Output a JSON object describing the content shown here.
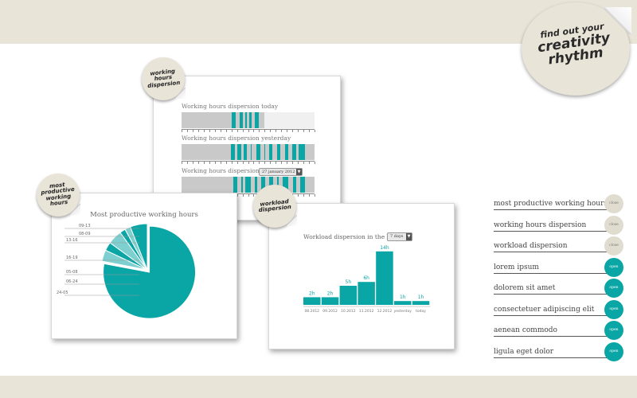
{
  "colors": {
    "teal": "#0aa5a5",
    "light_teal": "#7ed0d0",
    "beige": "#e9e4d8",
    "gray": "#c9c9c9"
  },
  "big_sticker": {
    "line1": "find out your",
    "line2": "creativity",
    "line3": "rhythm"
  },
  "hours_panel": {
    "sticker": "working hours dispersion",
    "rows": [
      {
        "label": "Working hours dispersion today",
        "segments": [
          [
            0.38,
            0.41
          ],
          [
            0.44,
            0.46
          ],
          [
            0.48,
            0.49
          ],
          [
            0.51,
            0.53
          ],
          [
            0.55,
            0.58
          ]
        ],
        "rest_from": 0.62
      },
      {
        "label": "Working hours dispersion yesterday",
        "segments": [
          [
            0.37,
            0.4
          ],
          [
            0.42,
            0.45
          ],
          [
            0.47,
            0.49
          ],
          [
            0.52,
            0.53
          ],
          [
            0.56,
            0.59
          ],
          [
            0.62,
            0.63
          ],
          [
            0.66,
            0.68
          ],
          [
            0.72,
            0.74
          ],
          [
            0.78,
            0.8
          ],
          [
            0.83,
            0.86
          ],
          [
            0.88,
            0.93
          ]
        ]
      },
      {
        "label": "Working hours dispersion on",
        "select": "27 january 2012",
        "segments": [
          [
            0.39,
            0.42
          ],
          [
            0.45,
            0.46
          ],
          [
            0.48,
            0.52
          ],
          [
            0.55,
            0.57
          ],
          [
            0.6,
            0.63
          ],
          [
            0.66,
            0.69
          ],
          [
            0.72,
            0.73
          ],
          [
            0.76,
            0.8
          ],
          [
            0.84,
            0.86
          ],
          [
            0.89,
            0.93
          ]
        ]
      }
    ]
  },
  "pie_panel": {
    "sticker": "most productive working hours",
    "chart_data": {
      "type": "pie",
      "title": "Most productive working hours",
      "labels": [
        "09-13",
        "08-09",
        "13-16",
        "16-19",
        "05-08",
        "06-24",
        "24-05"
      ],
      "values": [
        4,
        3,
        5,
        2,
        2,
        6,
        78
      ]
    }
  },
  "workload_panel": {
    "sticker": "workload dispersion",
    "title": "Workload dispersion in the last",
    "select": "7 days",
    "chart_data": {
      "type": "bar",
      "categories": [
        "08.2012",
        "09.2012",
        "10.2012",
        "11.2012",
        "12.2012",
        "yesterday",
        "today"
      ],
      "values": [
        2,
        2,
        5,
        6,
        14,
        1,
        1
      ],
      "value_labels": [
        "2h",
        "2h",
        "5h",
        "6h",
        "14h",
        "1h",
        "1h"
      ],
      "ylim": [
        0,
        15
      ]
    }
  },
  "legend": [
    {
      "label": "most productive working hours",
      "badge": "close",
      "style": "beige"
    },
    {
      "label": "working hours dispersion",
      "badge": "close",
      "style": "beige"
    },
    {
      "label": "workload dispersion",
      "badge": "close",
      "style": "beige"
    },
    {
      "label": "lorem ipsum",
      "badge": "open",
      "style": "teal"
    },
    {
      "label": "dolorem sit amet",
      "badge": "open",
      "style": "teal"
    },
    {
      "label": "consectetuer adipiscing elit",
      "badge": "open",
      "style": "teal"
    },
    {
      "label": "aenean commodo",
      "badge": "open",
      "style": "teal"
    },
    {
      "label": "ligula eget dolor",
      "badge": "open",
      "style": "teal"
    }
  ]
}
